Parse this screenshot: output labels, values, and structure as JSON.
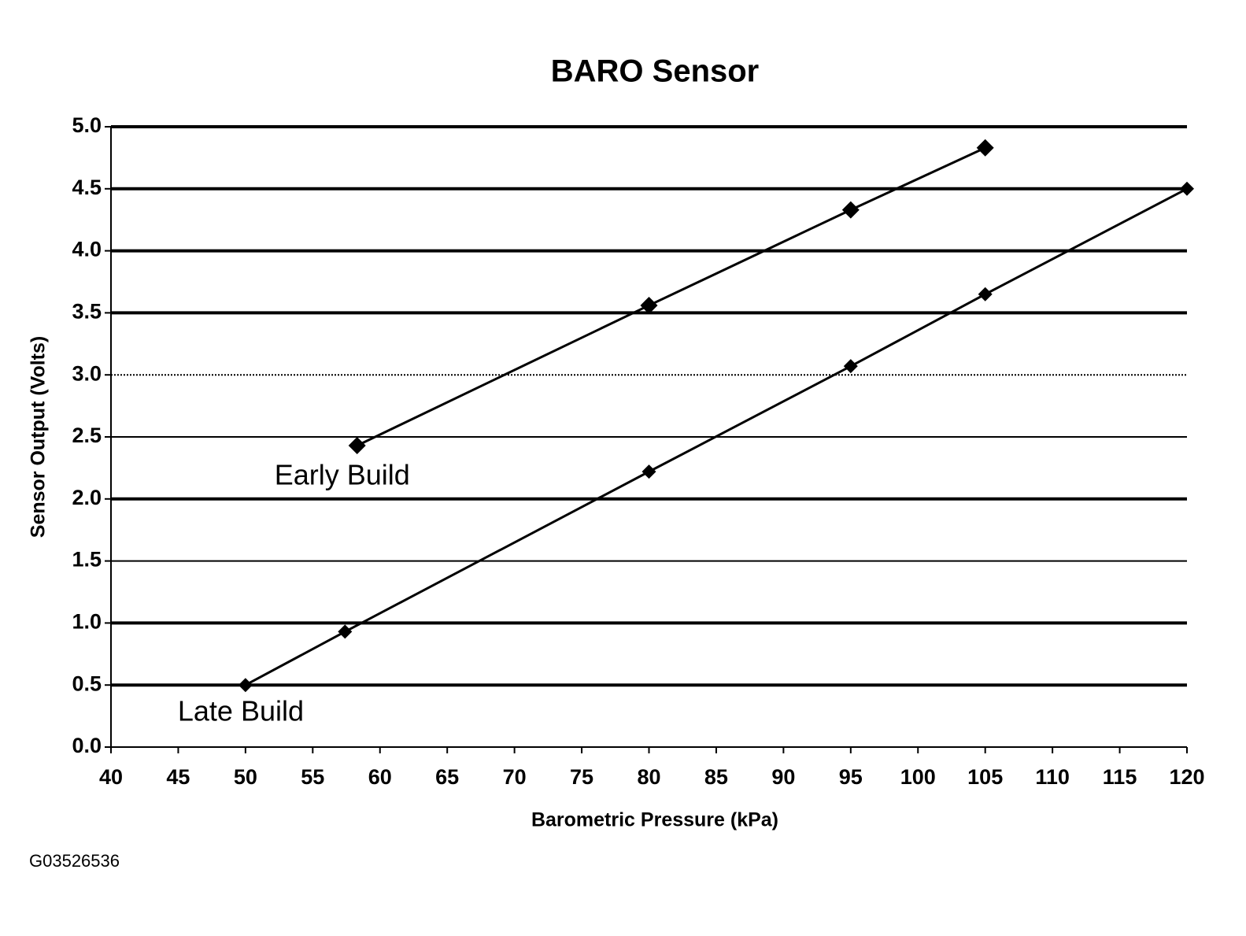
{
  "chart_data": {
    "type": "line",
    "title": "BARO Sensor",
    "x_label": "Barometric Pressure (kPa)",
    "y_label": "Sensor Output (Volts)",
    "figure_id": "G03526536",
    "xlim": [
      40,
      120
    ],
    "xticks": [
      40,
      45,
      50,
      55,
      60,
      65,
      70,
      75,
      80,
      85,
      90,
      95,
      100,
      105,
      110,
      115,
      120
    ],
    "ylim": [
      0,
      5
    ],
    "yticks": [
      {
        "value": 0,
        "label": "0.0"
      },
      0.5,
      {
        "value": 1,
        "label": "1.0"
      },
      1.5,
      {
        "value": 2,
        "label": "2.0"
      },
      2.5,
      {
        "value": 3,
        "label": "3.0"
      },
      3.5,
      {
        "value": 4,
        "label": "4.0"
      },
      4.5,
      {
        "value": 5,
        "label": "5.0"
      }
    ],
    "grid": true,
    "series": [
      {
        "name": "Early Build",
        "color": "#000000",
        "x": [
          58.3,
          80,
          95,
          105
        ],
        "values": [
          2.43,
          3.56,
          4.33,
          4.83
        ]
      },
      {
        "name": "Late Build",
        "color": "#000000",
        "x": [
          50,
          57.4,
          80,
          95,
          105,
          120
        ],
        "values": [
          0.5,
          0.93,
          2.22,
          3.07,
          3.65,
          4.5
        ]
      }
    ]
  }
}
